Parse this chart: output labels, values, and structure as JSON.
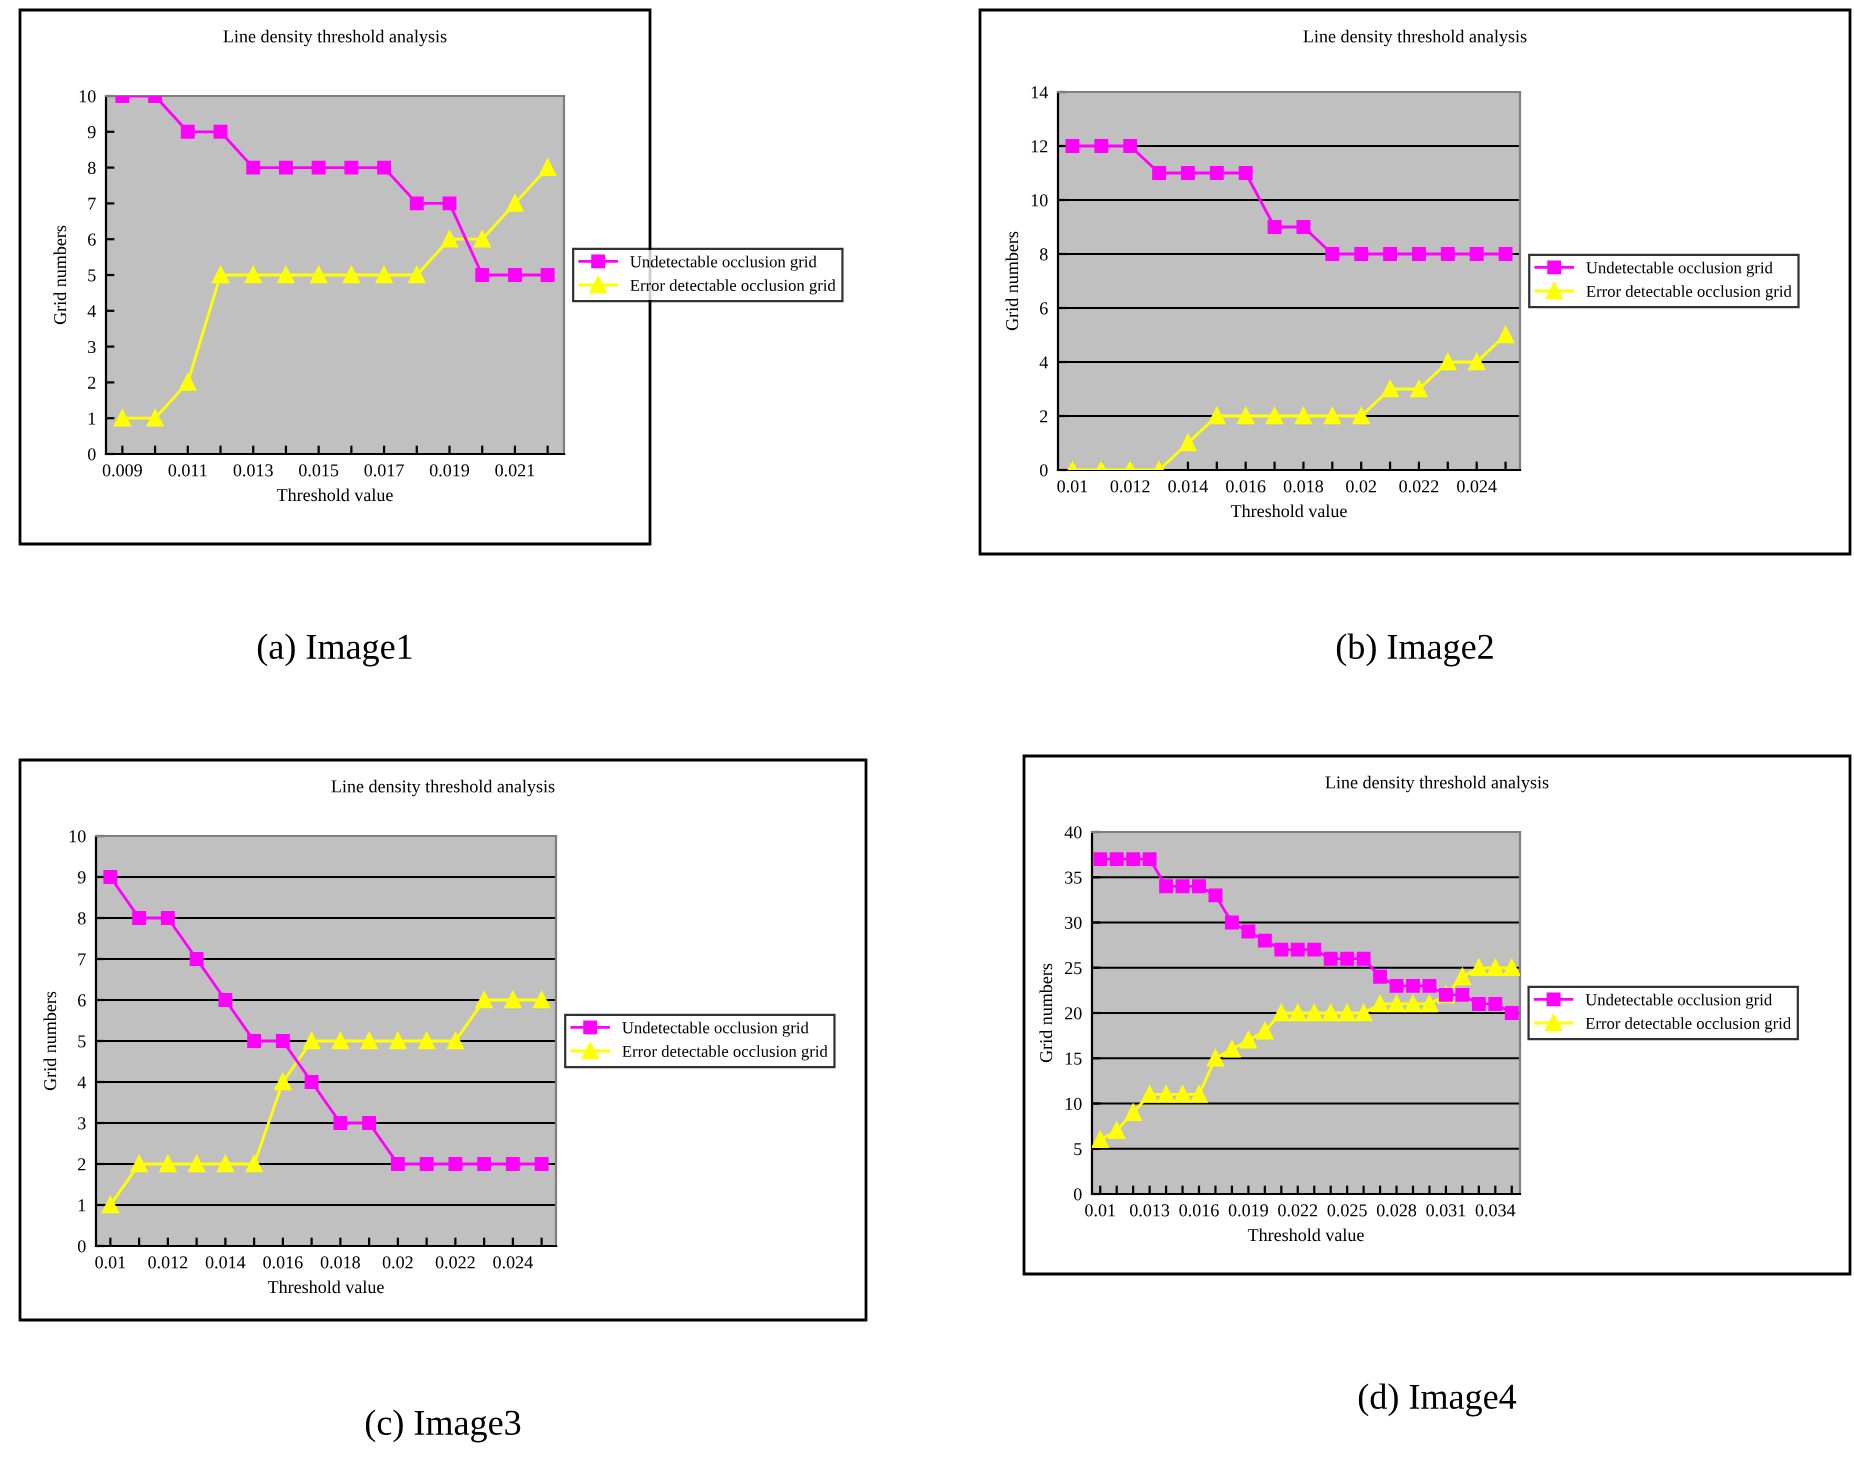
{
  "chart_data": [
    {
      "type": "line",
      "title": "Line density threshold analysis",
      "xlabel": "Threshold value",
      "ylabel": "Grid numbers",
      "annotations": [
        "(a) Image1"
      ],
      "categories": [
        "0.009",
        null,
        "0.011",
        null,
        "0.013",
        null,
        "0.015",
        null,
        "0.017",
        null,
        "0.019",
        null,
        "0.021",
        null
      ],
      "series": [
        {
          "name": "Undetectable occlusion grid",
          "color": "#ff00ff",
          "marker": "square",
          "values": [
            10,
            10,
            9,
            9,
            8,
            8,
            8,
            8,
            8,
            7,
            7,
            5,
            5,
            5
          ]
        },
        {
          "name": "Error detectable occlusion grid",
          "color": "#ffff00",
          "marker": "triangle",
          "values": [
            1,
            1,
            2,
            5,
            5,
            5,
            5,
            5,
            5,
            5,
            6,
            6,
            7,
            8
          ]
        }
      ],
      "ylim": [
        0,
        10
      ],
      "yticks": [
        0,
        1,
        2,
        3,
        4,
        5,
        6,
        7,
        8,
        9,
        10
      ],
      "grid": false,
      "legend": "right"
    },
    {
      "type": "line",
      "title": "Line density threshold analysis",
      "xlabel": "Threshold value",
      "ylabel": "Grid numbers",
      "annotations": [
        "(b) Image2"
      ],
      "categories": [
        "0.01",
        null,
        "0.012",
        null,
        "0.014",
        null,
        "0.016",
        null,
        "0.018",
        null,
        "0.02",
        null,
        "0.022",
        null,
        "0.024",
        null
      ],
      "series": [
        {
          "name": "Undetectable occlusion grid",
          "color": "#ff00ff",
          "marker": "square",
          "values": [
            12,
            12,
            12,
            11,
            11,
            11,
            11,
            9,
            9,
            8,
            8,
            8,
            8,
            8,
            8,
            8
          ]
        },
        {
          "name": "Error detectable occlusion grid",
          "color": "#ffff00",
          "marker": "triangle",
          "values": [
            0,
            0,
            0,
            0,
            1,
            2,
            2,
            2,
            2,
            2,
            2,
            3,
            3,
            4,
            4,
            5
          ]
        }
      ],
      "ylim": [
        0,
        14
      ],
      "yticks": [
        0,
        2,
        4,
        6,
        8,
        10,
        12,
        14
      ],
      "grid": "y",
      "legend": "right"
    },
    {
      "type": "line",
      "title": "Line density threshold analysis",
      "xlabel": "Threshold value",
      "ylabel": "Grid numbers",
      "annotations": [
        "(c) Image3"
      ],
      "categories": [
        "0.01",
        null,
        "0.012",
        null,
        "0.014",
        null,
        "0.016",
        null,
        "0.018",
        null,
        "0.02",
        null,
        "0.022",
        null,
        "0.024",
        null
      ],
      "series": [
        {
          "name": "Undetectable occlusion grid",
          "color": "#ff00ff",
          "marker": "square",
          "values": [
            9,
            8,
            8,
            7,
            6,
            5,
            5,
            4,
            3,
            3,
            2,
            2,
            2,
            2,
            2,
            2
          ]
        },
        {
          "name": "Error detectable occlusion grid",
          "color": "#ffff00",
          "marker": "triangle",
          "values": [
            1,
            2,
            2,
            2,
            2,
            2,
            4,
            5,
            5,
            5,
            5,
            5,
            5,
            6,
            6,
            6
          ]
        }
      ],
      "ylim": [
        0,
        10
      ],
      "yticks": [
        0,
        1,
        2,
        3,
        4,
        5,
        6,
        7,
        8,
        9,
        10
      ],
      "grid": "y",
      "legend": "right"
    },
    {
      "type": "line",
      "title": "Line density threshold analysis",
      "xlabel": "Threshold value",
      "ylabel": "Grid numbers",
      "annotations": [
        "(d) Image4"
      ],
      "categories": [
        "0.01",
        null,
        null,
        "0.013",
        null,
        null,
        "0.016",
        null,
        null,
        "0.019",
        null,
        null,
        "0.022",
        null,
        null,
        "0.025",
        null,
        null,
        "0.028",
        null,
        null,
        "0.031",
        null,
        null,
        "0.034",
        null
      ],
      "series": [
        {
          "name": "Undetectable occlusion grid",
          "color": "#ff00ff",
          "marker": "square",
          "values": [
            37,
            37,
            37,
            37,
            34,
            34,
            34,
            33,
            30,
            29,
            28,
            27,
            27,
            27,
            26,
            26,
            26,
            24,
            23,
            23,
            23,
            22,
            22,
            21,
            21,
            20
          ]
        },
        {
          "name": "Error detectable occlusion grid",
          "color": "#ffff00",
          "marker": "triangle",
          "values": [
            6,
            7,
            9,
            11,
            11,
            11,
            11,
            15,
            16,
            17,
            18,
            20,
            20,
            20,
            20,
            20,
            20,
            21,
            21,
            21,
            21,
            22,
            24,
            25,
            25,
            25
          ]
        }
      ],
      "ylim": [
        0,
        40
      ],
      "yticks": [
        0,
        5,
        10,
        15,
        20,
        25,
        30,
        35,
        40
      ],
      "grid": "y",
      "legend": "right"
    }
  ]
}
